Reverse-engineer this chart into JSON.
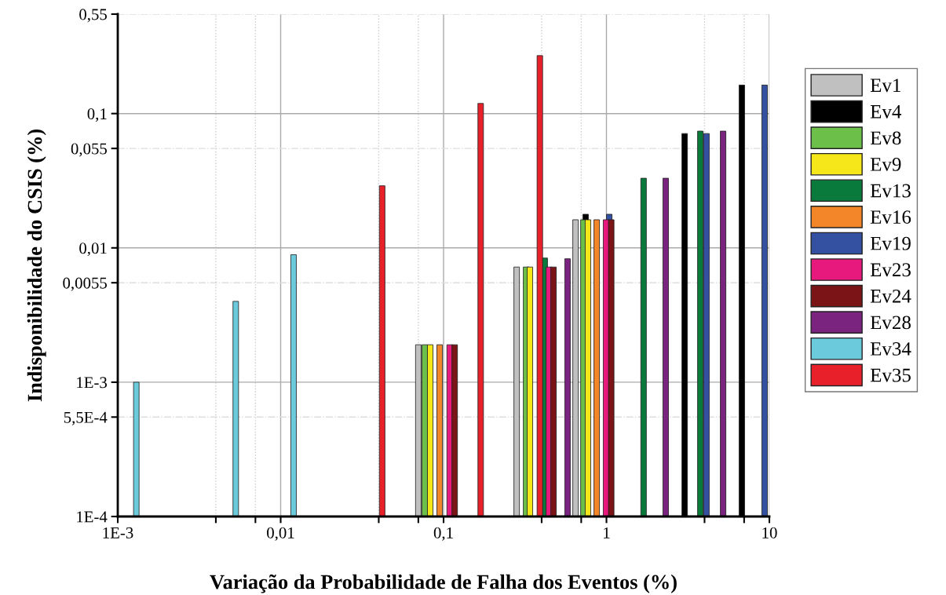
{
  "chart_data": {
    "type": "bar",
    "xlabel": "Variação da Probabilidade de Falha dos Eventos (%)",
    "ylabel": "Indisponibilidade do CSIS (%)",
    "log": "xy",
    "grid": true,
    "legend": "right",
    "xlim": [
      0.001,
      10
    ],
    "xticks": [
      {
        "value": 0.001,
        "label": "1E-3"
      },
      {
        "value": 0.004,
        "label": null
      },
      {
        "value": 0.007,
        "label": null
      },
      {
        "value": 0.01,
        "label": "0,01"
      },
      {
        "value": 0.04,
        "label": null
      },
      {
        "value": 0.07,
        "label": null
      },
      {
        "value": 0.1,
        "label": "0,1"
      },
      {
        "value": 0.4,
        "label": null
      },
      {
        "value": 0.7,
        "label": null
      },
      {
        "value": 1,
        "label": "1"
      },
      {
        "value": 4,
        "label": null
      },
      {
        "value": 7,
        "label": null
      },
      {
        "value": 10,
        "label": "10"
      }
    ],
    "ylim": [
      0.0001,
      0.55
    ],
    "yticks": [
      {
        "value": 0.0001,
        "label": "1E-4"
      },
      {
        "value": 0.00055,
        "label": "5,5E-4"
      },
      {
        "value": 0.001,
        "label": "1E-3"
      },
      {
        "value": 0.0055,
        "label": "0,0055"
      },
      {
        "value": 0.01,
        "label": "0,01"
      },
      {
        "value": 0.055,
        "label": "0,055"
      },
      {
        "value": 0.1,
        "label": "0,1"
      },
      {
        "value": 0.55,
        "label": "0,55"
      }
    ],
    "series": [
      {
        "name": "Ev1",
        "color": "#c0c0c0",
        "x": [
          0.07,
          0.281,
          0.646
        ],
        "values": [
          0.0019,
          0.0072,
          0.0162
        ]
      },
      {
        "name": "Ev4",
        "color": "#000000",
        "x": [
          0.745,
          3.02,
          6.78
        ],
        "values": [
          0.0178,
          0.071,
          0.163
        ]
      },
      {
        "name": "Ev8",
        "color": "#6cc04a",
        "x": [
          0.0766,
          0.321,
          0.722
        ],
        "values": [
          0.0019,
          0.0072,
          0.0162
        ]
      },
      {
        "name": "Ev9",
        "color": "#f5e71a",
        "x": [
          0.0828,
          0.339,
          0.77
        ],
        "values": [
          0.0019,
          0.0072,
          0.0162
        ]
      },
      {
        "name": "Ev13",
        "color": "#0a7a3c",
        "x": [
          0.418,
          1.69,
          3.77
        ],
        "values": [
          0.0084,
          0.033,
          0.074
        ]
      },
      {
        "name": "Ev16",
        "color": "#f4862a",
        "x": [
          0.0946,
          0.871
        ],
        "values": [
          0.0019,
          0.0162
        ]
      },
      {
        "name": "Ev19",
        "color": "#3450a0",
        "x": [
          1.04,
          4.11,
          9.35
        ],
        "values": [
          0.0178,
          0.071,
          0.163
        ]
      },
      {
        "name": "Ev23",
        "color": "#e8197d",
        "x": [
          0.109,
          0.443,
          0.994
        ],
        "values": [
          0.0019,
          0.0072,
          0.0162
        ]
      },
      {
        "name": "Ev24",
        "color": "#7a1416",
        "x": [
          0.117,
          0.473,
          1.07
        ],
        "values": [
          0.0019,
          0.0072,
          0.0162
        ]
      },
      {
        "name": "Ev28",
        "color": "#7a237f",
        "x": [
          0.577,
          2.31,
          5.2
        ],
        "values": [
          0.0083,
          0.033,
          0.074
        ]
      },
      {
        "name": "Ev34",
        "color": "#6bcbdc",
        "x": [
          0.0013,
          0.0053,
          0.012
        ],
        "values": [
          0.001,
          0.004,
          0.0089
        ]
      },
      {
        "name": "Ev35",
        "color": "#e8202a",
        "x": [
          0.042,
          0.169,
          0.39
        ],
        "values": [
          0.029,
          0.119,
          0.27
        ]
      }
    ]
  }
}
